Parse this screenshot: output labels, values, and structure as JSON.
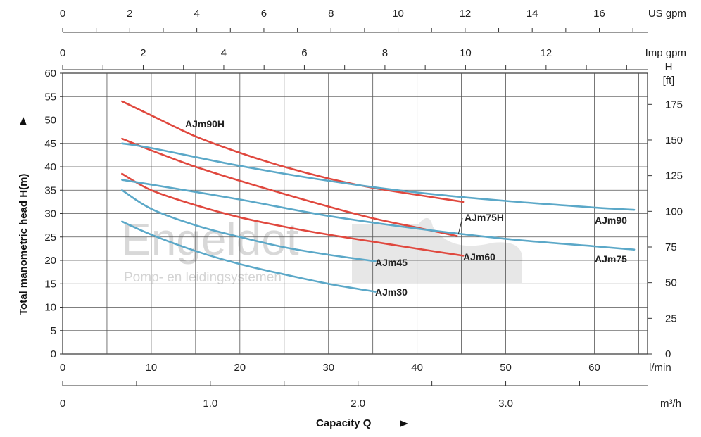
{
  "chart_data": {
    "type": "line",
    "title": "",
    "xlabel": "Capacity Q",
    "ylabel": "Total manometric head H(m)",
    "x_unit": "l/min",
    "xlim": [
      0,
      66
    ],
    "ylim": [
      0,
      60
    ],
    "x_ticks": [
      0,
      10,
      20,
      30,
      40,
      50,
      60
    ],
    "y_ticks": [
      0,
      5,
      10,
      15,
      20,
      25,
      30,
      35,
      40,
      45,
      50,
      55,
      60
    ],
    "grid": true,
    "secondary_axes": {
      "us_gpm": {
        "unit": "US gpm",
        "ticks": [
          0,
          2,
          4,
          6,
          8,
          10,
          12,
          14,
          16
        ]
      },
      "imp_gpm": {
        "unit": "Imp gpm",
        "ticks": [
          0,
          2,
          4,
          6,
          8,
          10,
          12
        ]
      },
      "m3h": {
        "unit": "m³/h",
        "tick_labels": [
          "0",
          "1.0",
          "2.0",
          "3.0"
        ],
        "ticks": [
          0,
          1.0,
          2.0,
          3.0
        ]
      },
      "head_ft": {
        "unit_top": "H",
        "unit_bottom": "[ft]",
        "ticks": [
          0,
          25,
          50,
          75,
          100,
          125,
          150,
          175
        ]
      }
    },
    "series": [
      {
        "name": "AJm90H",
        "color": "#e0483e",
        "x": [
          6.7,
          10,
          15,
          20,
          25,
          30,
          35,
          40,
          45.2
        ],
        "y": [
          54,
          51,
          46.5,
          43,
          40,
          37.5,
          35.5,
          34,
          32.5
        ]
      },
      {
        "name": "AJm75H",
        "color": "#e0483e",
        "x": [
          6.7,
          10,
          15,
          20,
          25,
          30,
          35,
          40,
          44.5
        ],
        "y": [
          46,
          43.5,
          40,
          37,
          34.2,
          31.5,
          29,
          27,
          25.2
        ]
      },
      {
        "name": "AJm60",
        "color": "#e0483e",
        "x": [
          6.7,
          10,
          15,
          20,
          25,
          30,
          35,
          40,
          45.2
        ],
        "y": [
          38.5,
          35,
          31.8,
          29.2,
          27.2,
          25.5,
          24,
          22.5,
          21
        ]
      },
      {
        "name": "AJm90",
        "color": "#5ba8c8",
        "x": [
          6.7,
          10,
          20,
          30,
          40,
          50,
          60,
          64.5
        ],
        "y": [
          45,
          44,
          40.2,
          37,
          34.5,
          32.7,
          31.3,
          30.8
        ]
      },
      {
        "name": "AJm75",
        "color": "#5ba8c8",
        "x": [
          6.7,
          10,
          20,
          30,
          40,
          50,
          60,
          64.5
        ],
        "y": [
          37.2,
          36.2,
          33,
          29.5,
          26.8,
          24.6,
          23,
          22.3
        ]
      },
      {
        "name": "AJm45",
        "color": "#5ba8c8",
        "x": [
          6.7,
          10,
          15,
          20,
          25,
          30,
          35.3
        ],
        "y": [
          35,
          31,
          27.5,
          25,
          22.8,
          21.2,
          19.8
        ]
      },
      {
        "name": "AJm30",
        "color": "#5ba8c8",
        "x": [
          6.7,
          10,
          15,
          20,
          25,
          30,
          35.3
        ],
        "y": [
          28.3,
          25.5,
          22,
          19.2,
          17,
          15,
          13.3
        ]
      }
    ]
  },
  "watermark": {
    "brand": "Engeldot",
    "tagline": "Pomp- en leidingsystemen"
  }
}
